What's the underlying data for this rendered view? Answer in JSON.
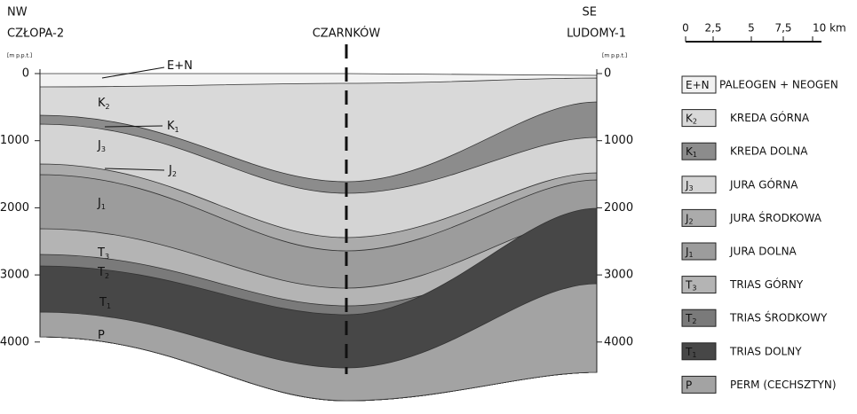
{
  "left_well": {
    "direction": "NW",
    "name": "CZŁOPA-2",
    "unit": "[m p.p.t.]",
    "ticks": [
      "0",
      "1000",
      "2000",
      "3000",
      "4000"
    ]
  },
  "center_well": {
    "name": "CZARNKÓW"
  },
  "right_well": {
    "direction": "SE",
    "name": "LUDOMY-1",
    "unit": "[m p.p.t.]",
    "ticks": [
      "0",
      "1000",
      "2000",
      "3000",
      "4000"
    ]
  },
  "scale_bar": {
    "labels": [
      "0",
      "2,5",
      "5",
      "7,5",
      "10 km"
    ]
  },
  "layers": [
    {
      "symbol": "E+N",
      "sub": null,
      "label": "PALEOGEN + NEOGEN"
    },
    {
      "symbol": "K",
      "sub": "2",
      "label": "KREDA GÓRNA"
    },
    {
      "symbol": "K",
      "sub": "1",
      "label": "KREDA DOLNA"
    },
    {
      "symbol": "J",
      "sub": "3",
      "label": "JURA GÓRNA"
    },
    {
      "symbol": "J",
      "sub": "2",
      "label": "JURA ŚRODKOWA"
    },
    {
      "symbol": "J",
      "sub": "1",
      "label": "JURA DOLNA"
    },
    {
      "symbol": "T",
      "sub": "3",
      "label": "TRIAS GÓRNY"
    },
    {
      "symbol": "T",
      "sub": "2",
      "label": "TRIAS ŚRODKOWY"
    },
    {
      "symbol": "T",
      "sub": "1",
      "label": "TRIAS DOLNY"
    },
    {
      "symbol": "P",
      "sub": null,
      "label": "PERM (CECHSZTYN)"
    }
  ]
}
